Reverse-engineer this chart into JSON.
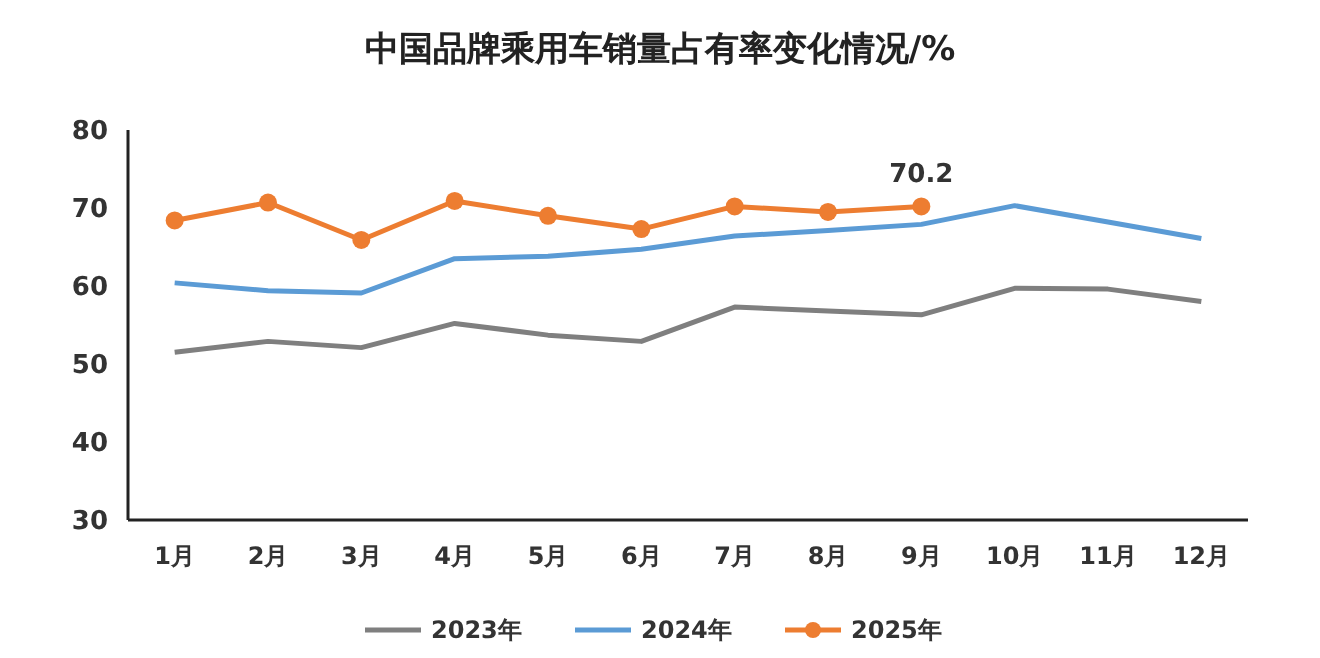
{
  "chart_data": {
    "type": "line",
    "title": "中国品牌乘用车销量占有率变化情况/%",
    "categories": [
      "1月",
      "2月",
      "3月",
      "4月",
      "5月",
      "6月",
      "7月",
      "8月",
      "9月",
      "10月",
      "11月",
      "12月"
    ],
    "ylim": [
      30,
      80
    ],
    "yticks": [
      30,
      40,
      50,
      60,
      70,
      80
    ],
    "grid": false,
    "legend": "bottom",
    "line_style": "solid",
    "series": [
      {
        "name": "2023年",
        "color": "#7f7f7f",
        "marker": "none",
        "values": [
          51.5,
          52.9,
          52.1,
          55.2,
          53.7,
          52.9,
          57.3,
          56.8,
          56.3,
          59.7,
          59.6,
          58.0
        ]
      },
      {
        "name": "2024年",
        "color": "#5b9bd5",
        "marker": "none",
        "values": [
          60.4,
          59.4,
          59.1,
          63.5,
          63.8,
          64.7,
          66.4,
          67.1,
          67.9,
          70.3,
          68.2,
          66.1
        ]
      },
      {
        "name": "2025年",
        "color": "#ed7d31",
        "marker": "circle",
        "values": [
          68.4,
          70.7,
          65.9,
          70.9,
          69.0,
          67.3,
          70.2,
          69.5,
          70.2,
          null,
          null,
          null
        ]
      }
    ],
    "annotations": [
      {
        "text": "70.2",
        "x": "9月",
        "y": 70.2
      }
    ]
  }
}
